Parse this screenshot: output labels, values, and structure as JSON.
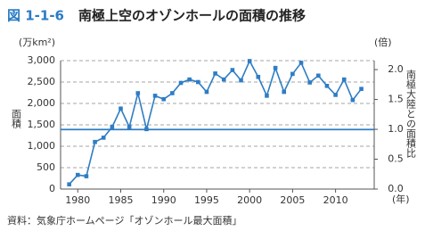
{
  "chart_data": {
    "type": "line",
    "figure_label": "図 1-1-6",
    "title": "南極上空のオゾンホールの面積の推移",
    "y_unit": "(万km²)",
    "y2_unit": "(倍)",
    "x_unit": "(年)",
    "y_label": "面積",
    "y2_label": "南極大陸との面積比",
    "source": "資料：気象庁ホームページ「オゾンホール最大面積」",
    "x": [
      1979,
      1980,
      1981,
      1982,
      1983,
      1984,
      1985,
      1986,
      1987,
      1988,
      1989,
      1990,
      1991,
      1992,
      1993,
      1994,
      1995,
      1996,
      1997,
      1998,
      1999,
      2000,
      2001,
      2002,
      2003,
      2004,
      2005,
      2006,
      2007,
      2008,
      2009,
      2010,
      2011,
      2012,
      2013
    ],
    "series": [
      {
        "color": "#2e7dc4",
        "values": [
          110,
          330,
          300,
          1100,
          1200,
          1450,
          1880,
          1450,
          2240,
          1400,
          2180,
          2100,
          2240,
          2480,
          2560,
          2500,
          2270,
          2700,
          2560,
          2780,
          2540,
          2990,
          2620,
          2180,
          2830,
          2270,
          2690,
          2950,
          2490,
          2650,
          2410,
          2200,
          2560,
          2080,
          2340
        ]
      }
    ],
    "reference_value": 1390,
    "reference_color": "#2e7dc4",
    "xlim": [
      1978,
      2014.5
    ],
    "xticks": [
      1980,
      1985,
      1990,
      1995,
      2000,
      2005,
      2010
    ],
    "ylim": [
      0,
      3000
    ],
    "yticks": [
      0,
      500,
      {
        "value": 1000,
        "label": "1,000"
      },
      {
        "value": 1500,
        "label": "1,500"
      },
      {
        "value": 2000,
        "label": "2,000"
      },
      {
        "value": 2500,
        "label": "2,500"
      },
      {
        "value": 3000,
        "label": "3,000"
      }
    ],
    "y2lim": [
      0,
      2.15
    ],
    "y2ticks": [
      {
        "value": 0,
        "label": "0.0"
      },
      0.5,
      {
        "value": 1,
        "label": "1.0"
      },
      1.5,
      {
        "value": 2,
        "label": "2.0"
      }
    ],
    "grid": true
  }
}
